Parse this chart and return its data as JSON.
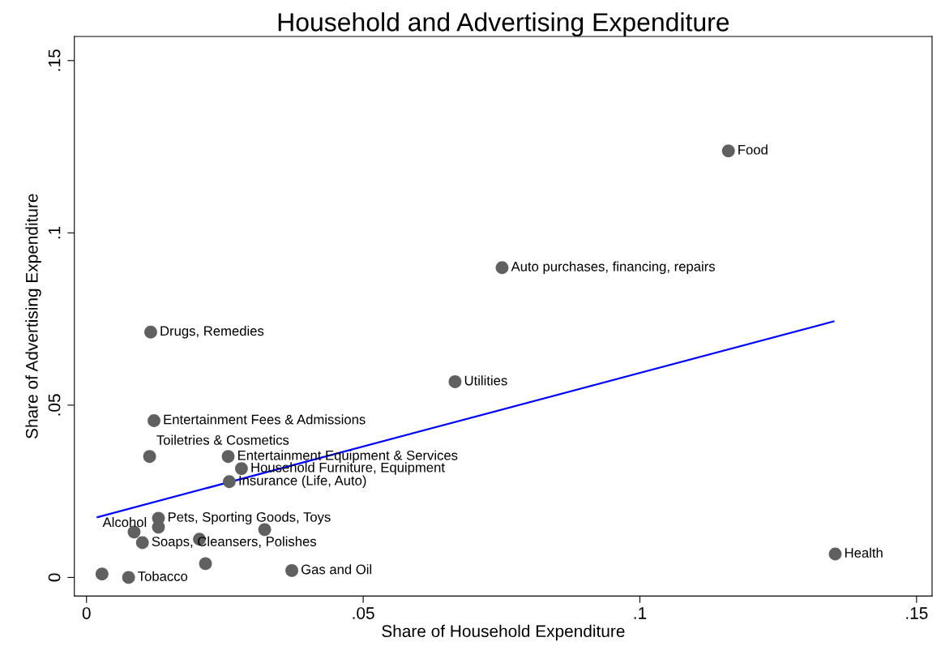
{
  "chart_data": {
    "type": "scatter",
    "title": "Household and Advertising Expenditure",
    "xlabel": "Share of Household Expenditure",
    "ylabel": "Share of Advertising Expenditure",
    "x": [
      0.116,
      0.0751,
      0.0116,
      0.0666,
      0.0122,
      0.0114,
      0.0256,
      0.028,
      0.0258,
      0.013,
      0.0086,
      0.0101,
      0.0076,
      0.0371,
      0.1353,
      0.013,
      0.0204,
      0.0322,
      0.0215,
      0.0028
    ],
    "series": [
      {
        "color": "#606060",
        "marker": "circle",
        "values": [
          0.1238,
          0.0899,
          0.0712,
          0.0568,
          0.0455,
          0.0351,
          0.0351,
          0.0316,
          0.0278,
          0.0172,
          0.0132,
          0.0101,
          0.0,
          0.002,
          0.0068,
          0.0146,
          0.0111,
          0.0139,
          0.004,
          0.001
        ]
      },
      {
        "type": "line",
        "color": "#0000ff",
        "marker": "none",
        "x": [
          0.002,
          0.135
        ],
        "values": [
          0.0175,
          0.0743
        ]
      }
    ],
    "annotations": [
      {
        "text": "Food",
        "x": 0.116,
        "y": 0.1238
      },
      {
        "text": "Auto purchases, financing, repairs",
        "x": 0.0751,
        "y": 0.0899
      },
      {
        "text": "Drugs, Remedies",
        "x": 0.0116,
        "y": 0.0712
      },
      {
        "text": "Utilities",
        "x": 0.0666,
        "y": 0.0568
      },
      {
        "text": "Entertainment Fees & Admissions",
        "x": 0.0122,
        "y": 0.0455
      },
      {
        "text": "Toiletries & Cosmetics",
        "x": 0.0114,
        "y": 0.0351
      },
      {
        "text": "Entertainment Equipment & Services",
        "x": 0.0256,
        "y": 0.0351
      },
      {
        "text": "Household Furniture, Equipment",
        "x": 0.028,
        "y": 0.0316
      },
      {
        "text": "Insurance (Life, Auto)",
        "x": 0.0258,
        "y": 0.0278
      },
      {
        "text": "Pets, Sporting Goods, Toys",
        "x": 0.013,
        "y": 0.0172
      },
      {
        "text": "Alcohol",
        "x": 0.0086,
        "y": 0.0132
      },
      {
        "text": "Soaps, Cleansers, Polishes",
        "x": 0.0101,
        "y": 0.0101
      },
      {
        "text": "Tobacco",
        "x": 0.0076,
        "y": 0.0
      },
      {
        "text": "Gas and Oil",
        "x": 0.0371,
        "y": 0.002
      },
      {
        "text": "Health",
        "x": 0.1353,
        "y": 0.0068
      }
    ],
    "xlim": [
      -0.0022,
      0.1528
    ],
    "ylim": [
      -0.0054,
      0.157
    ],
    "xticks": [
      {
        "value": 0,
        "label": "0"
      },
      {
        "value": 0.05,
        "label": ".05"
      },
      {
        "value": 0.1,
        "label": ".1"
      },
      {
        "value": 0.15,
        "label": ".15"
      }
    ],
    "yticks": [
      {
        "value": 0,
        "label": "0"
      },
      {
        "value": 0.05,
        "label": ".05"
      },
      {
        "value": 0.1,
        "label": ".1"
      },
      {
        "value": 0.15,
        "label": ".15"
      }
    ],
    "grid": false,
    "legend": false
  }
}
